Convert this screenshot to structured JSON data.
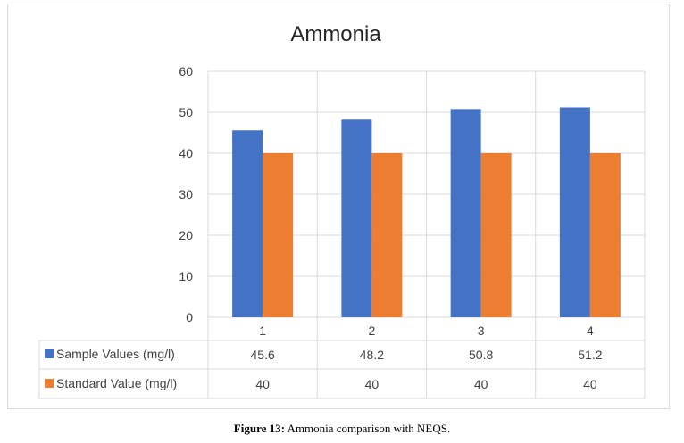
{
  "caption": {
    "label": "Figure 13:",
    "text": " Ammonia comparison with NEQS."
  },
  "chart_data": {
    "type": "bar",
    "title": "Ammonia",
    "categories": [
      "1",
      "2",
      "3",
      "4"
    ],
    "ylim": [
      0,
      60
    ],
    "yticks": [
      "0",
      "10",
      "20",
      "30",
      "40",
      "50",
      "60"
    ],
    "grid": true,
    "legend": "data-table",
    "series": [
      {
        "name": "Sample Values (mg/l)",
        "values": [
          45.6,
          48.2,
          50.8,
          51.2
        ],
        "labels": [
          "45.6",
          "48.2",
          "50.8",
          "51.2"
        ],
        "color": "#4472c4"
      },
      {
        "name": "Standard Value (mg/l)",
        "values": [
          40,
          40,
          40,
          40
        ],
        "labels": [
          "40",
          "40",
          "40",
          "40"
        ],
        "color": "#ed7d31"
      }
    ]
  }
}
